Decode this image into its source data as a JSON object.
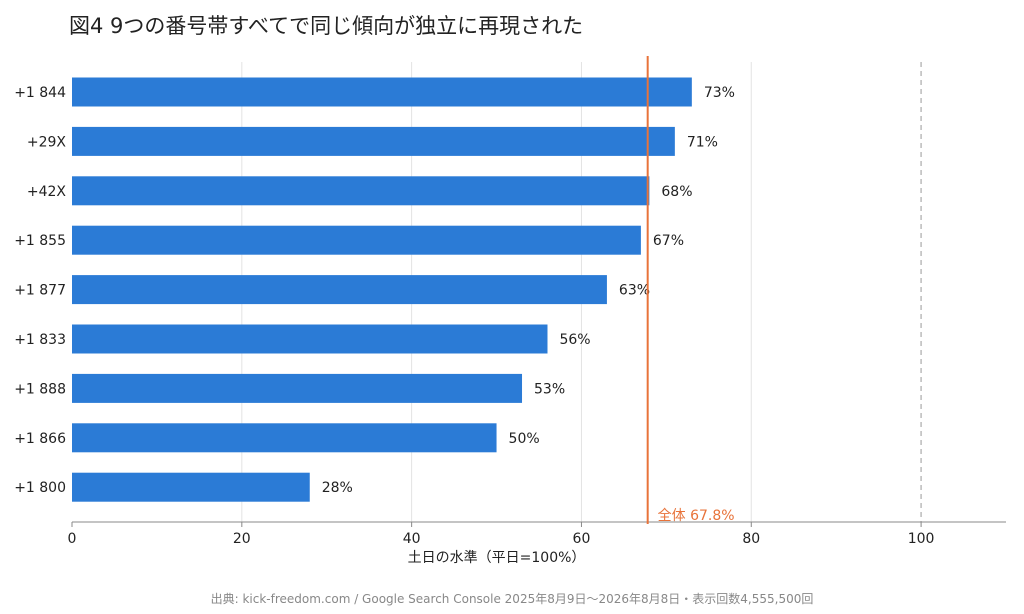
{
  "title": "図4 9つの番号帯すべてで同じ傾向が独立に再現された",
  "source": "出典: kick-freedom.com / Google Search Console 2025年8月9日〜2026年8月8日・表示回数4,555,500回",
  "colors": {
    "bar": "#2b7bd6",
    "reference_line": "#e8733a",
    "grid": "#e3e3e3",
    "dashed_line": "#bbbbbb",
    "axis": "#888888"
  },
  "chart_data": {
    "type": "bar",
    "orientation": "horizontal",
    "categories": [
      "+1 844",
      "+29X",
      "+42X",
      "+1 855",
      "+1 877",
      "+1 833",
      "+1 888",
      "+1 866",
      "+1 800"
    ],
    "values": [
      73,
      71,
      68,
      67,
      63,
      56,
      53,
      50,
      28
    ],
    "value_labels": [
      "73%",
      "71%",
      "68%",
      "67%",
      "63%",
      "56%",
      "53%",
      "50%",
      "28%"
    ],
    "xlabel": "土日の水準（平日=100%）",
    "ylabel": "",
    "xlim": [
      0,
      110
    ],
    "xticks": [
      0,
      20,
      40,
      60,
      80,
      100
    ],
    "xtick_labels": [
      "0",
      "20",
      "40",
      "60",
      "80",
      "100"
    ],
    "grid": true,
    "reference_line": {
      "value": 67.8,
      "label": "全体 67.8%"
    },
    "dashed_line": {
      "value": 100
    }
  }
}
